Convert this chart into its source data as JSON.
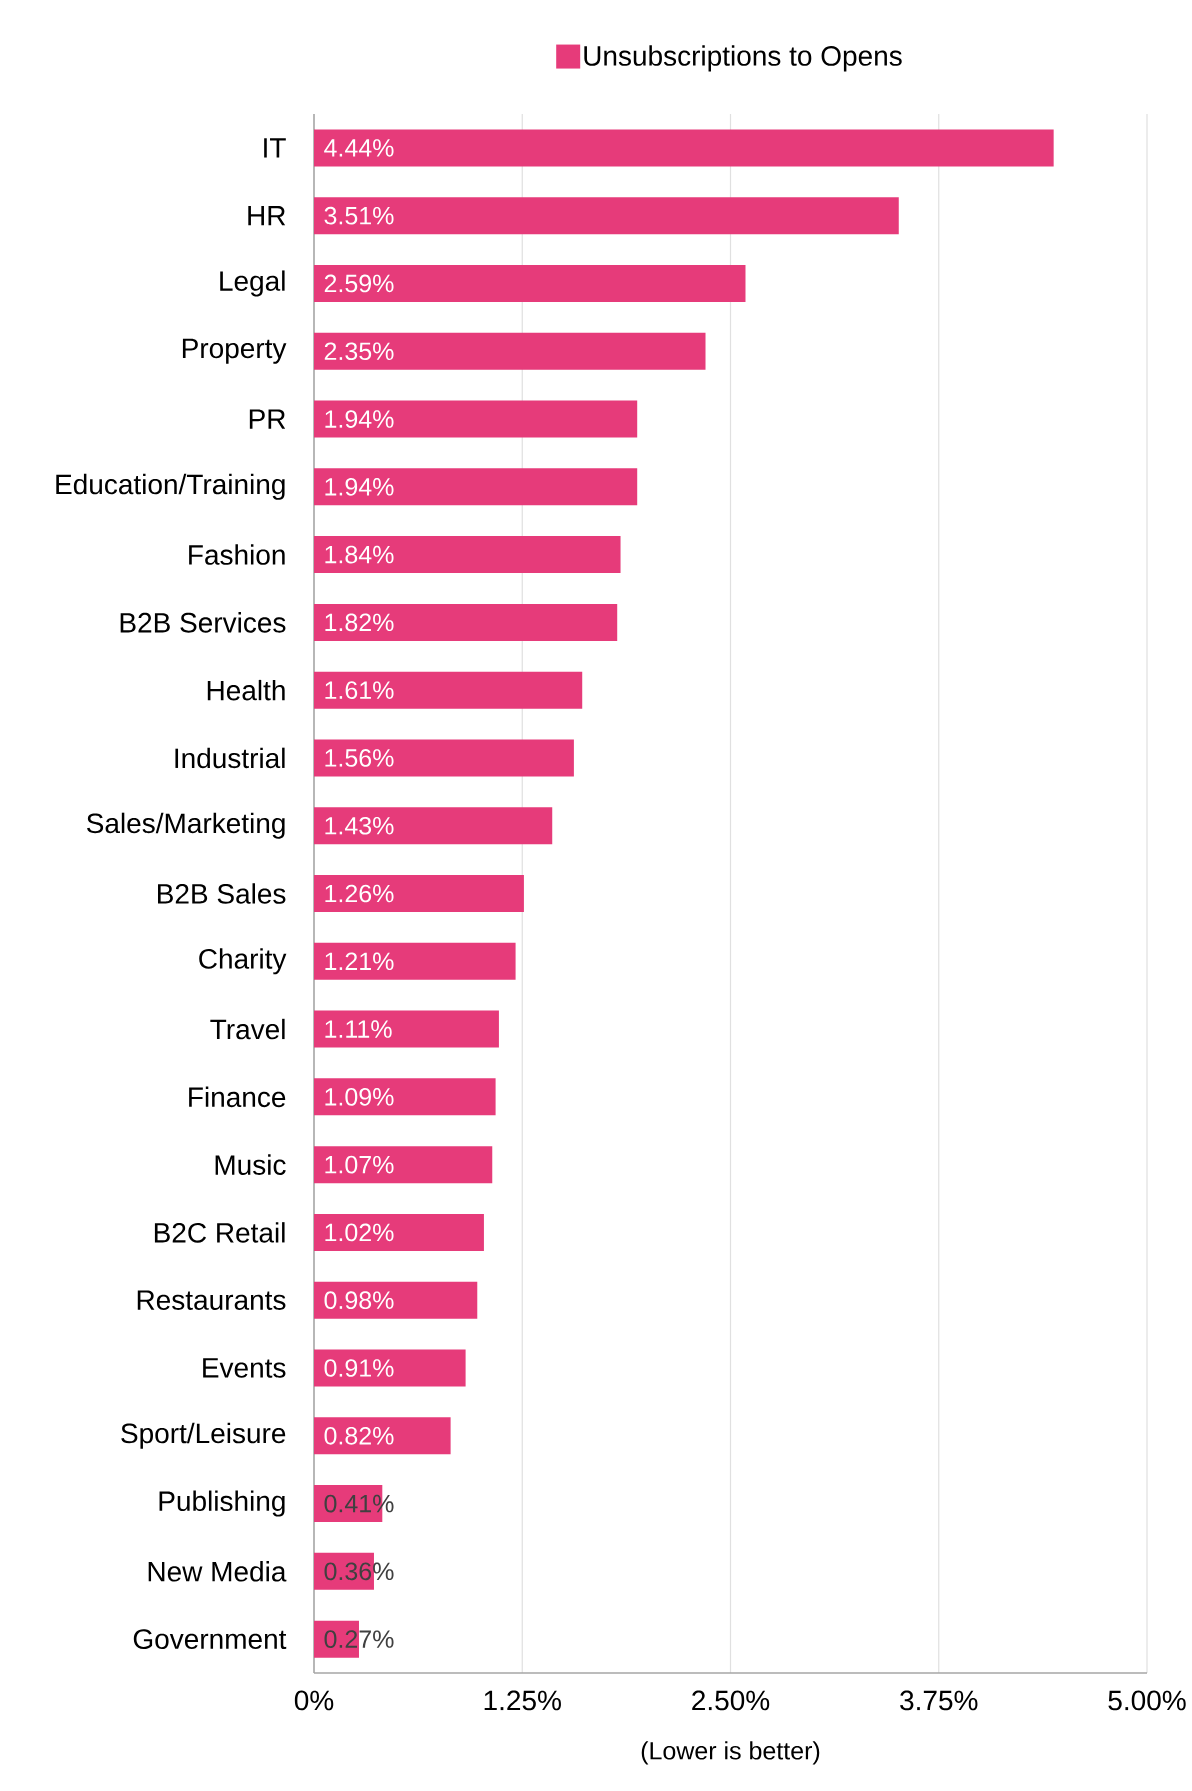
{
  "chart_data": {
    "type": "bar",
    "orientation": "horizontal",
    "xlabel": "(Lower is better)",
    "categories": [
      "IT",
      "HR",
      "Legal",
      "Property",
      "PR",
      "Education/Training",
      "Fashion",
      "B2B Services",
      "Health",
      "Industrial",
      "Sales/Marketing",
      "B2B Sales",
      "Charity",
      "Travel",
      "Finance",
      "Music",
      "B2C Retail",
      "Restaurants",
      "Events",
      "Sport/Leisure",
      "Publishing",
      "New Media",
      "Government"
    ],
    "series": [
      {
        "name": "Unsubscriptions to Opens",
        "color": "#e63b7a",
        "values": [
          4.44,
          3.51,
          2.59,
          2.35,
          1.94,
          1.94,
          1.84,
          1.82,
          1.61,
          1.56,
          1.43,
          1.26,
          1.21,
          1.11,
          1.09,
          1.07,
          1.02,
          0.98,
          0.91,
          0.82,
          0.41,
          0.36,
          0.27
        ],
        "value_labels": [
          "4.44%",
          "3.51%",
          "2.59%",
          "2.35%",
          "1.94%",
          "1.94%",
          "1.84%",
          "1.82%",
          "1.61%",
          "1.56%",
          "1.43%",
          "1.26%",
          "1.21%",
          "1.11%",
          "1.09%",
          "1.07%",
          "1.02%",
          "0.98%",
          "0.91%",
          "0.82%",
          "0.41%",
          "0.36%",
          "0.27%"
        ]
      }
    ],
    "xlim": [
      0,
      5
    ],
    "xticks": [
      {
        "value": 0,
        "label": "0%"
      },
      {
        "value": 1.25,
        "label": "1.25%"
      },
      {
        "value": 2.5,
        "label": "2.50%"
      },
      {
        "value": 3.75,
        "label": "3.75%"
      },
      {
        "value": 5,
        "label": "5.00%"
      }
    ],
    "grid": "x",
    "legend": "top"
  }
}
